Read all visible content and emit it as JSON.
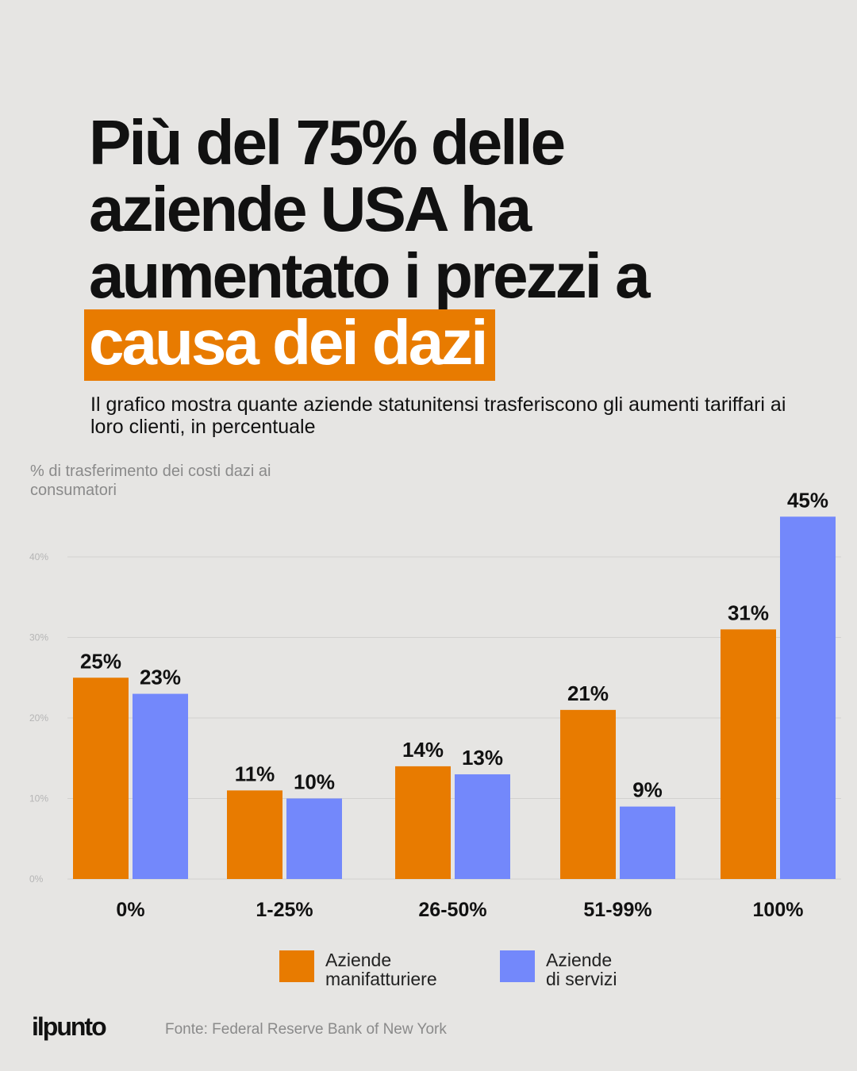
{
  "header": {
    "title_lines": [
      "Più del 75% delle",
      "aziende USA ha",
      "aumentato i prezzi a"
    ],
    "title_highlight": "causa dei dazi",
    "subtitle": "Il grafico mostra quante aziende statunitensi trasferiscono gli aumenti tariffari ai loro clienti, in percentuale"
  },
  "chart_data": {
    "type": "bar",
    "ylabel": "% di trasferimento dei costi dazi ai consumatori",
    "categories": [
      "0%",
      "1-25%",
      "26-50%",
      "51-99%",
      "100%"
    ],
    "series": [
      {
        "name": "Aziende manifatturiere",
        "values": [
          25,
          11,
          14,
          21,
          31
        ],
        "labels": [
          "25%",
          "11%",
          "14%",
          "21%",
          "31%"
        ],
        "color": "#e87b00"
      },
      {
        "name": "Aziende di servizi",
        "values": [
          23,
          10,
          13,
          9,
          45
        ],
        "labels": [
          "23%",
          "10%",
          "13%",
          "9%",
          "45%"
        ],
        "color": "#7388fb"
      }
    ],
    "ylim": [
      0,
      45
    ],
    "yticks": [
      0,
      10,
      20,
      30,
      40
    ],
    "ytick_labels": [
      "0%",
      "10%",
      "20%",
      "30%",
      "40%"
    ],
    "grid": true,
    "legend_position": "bottom"
  },
  "legend": {
    "items": [
      {
        "line1": "Aziende",
        "line2": "manifatturiere",
        "color": "#e87b00"
      },
      {
        "line1": "Aziende",
        "line2": "di servizi",
        "color": "#7388fb"
      }
    ]
  },
  "footer": {
    "brand": "ilpunto",
    "source": "Fonte: Federal Reserve Bank of New York"
  }
}
